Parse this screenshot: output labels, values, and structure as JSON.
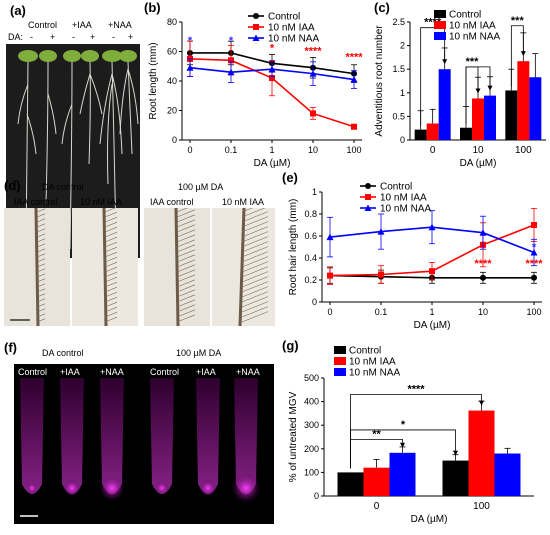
{
  "panels": {
    "a": {
      "label": "(a)",
      "groups": [
        "Control",
        "+IAA",
        "+NAA"
      ],
      "da_label": "DA:",
      "signs": [
        "-",
        "+",
        "-",
        "+",
        "-",
        "+"
      ]
    },
    "d": {
      "label": "(d)",
      "groups": [
        "DA control",
        "100 µM DA"
      ],
      "sub": [
        "IAA control",
        "10 nM IAA",
        "IAA control",
        "10 nM IAA"
      ]
    },
    "f": {
      "label": "(f)",
      "groups": [
        "DA control",
        "100 µM DA"
      ],
      "sub": [
        "Control",
        "+IAA",
        "+NAA",
        "Control",
        "+IAA",
        "+NAA"
      ]
    }
  },
  "colors": {
    "control": "#000000",
    "iaa": "#ff0000",
    "naa": "#0000ff",
    "sig": "#ff0000",
    "sig_blue": "#3333ff"
  },
  "chart_data": [
    {
      "id": "b",
      "label": "(b)",
      "type": "line",
      "x": [
        "0",
        "0.1",
        "1",
        "10",
        "100"
      ],
      "xlabel": "DA (µM)",
      "ylabel": "Root length (mm)",
      "ylim": [
        0,
        80
      ],
      "yticks": [
        "0",
        "20",
        "40",
        "60",
        "80"
      ],
      "legend": [
        "Control",
        "10 nM IAA",
        "10 nM NAA"
      ],
      "series": [
        {
          "name": "Control",
          "values": [
            59,
            59,
            52,
            49,
            45
          ],
          "err": [
            8,
            8,
            6,
            7,
            6
          ]
        },
        {
          "name": "10 nM IAA",
          "values": [
            55,
            54,
            42,
            18,
            9
          ],
          "err": [
            12,
            10,
            12,
            4,
            1
          ]
        },
        {
          "name": "10 nM NAA",
          "values": [
            49,
            46,
            48,
            45,
            41
          ],
          "err": [
            6,
            7,
            5,
            8,
            6
          ]
        }
      ],
      "annotations": [
        {
          "x": "0",
          "y": 65,
          "text": "*",
          "color": "blue"
        },
        {
          "x": "0.1",
          "y": 65,
          "text": "*",
          "color": "blue"
        },
        {
          "x": "1",
          "y": 60,
          "text": "*",
          "color": "red"
        },
        {
          "x": "10",
          "y": 58,
          "text": "****",
          "color": "red"
        },
        {
          "x": "100",
          "y": 54,
          "text": "****",
          "color": "red"
        }
      ]
    },
    {
      "id": "c",
      "label": "(c)",
      "type": "bar",
      "categories": [
        "0",
        "10",
        "100"
      ],
      "xlabel": "DA (µM)",
      "ylabel": "Adventitious root number",
      "ylim": [
        0,
        2.5
      ],
      "yticks": [
        "0",
        "0.5",
        "1",
        "1.5",
        "2",
        "2.5"
      ],
      "legend": [
        "Control",
        "10 nM IAA",
        "10 nM NAA"
      ],
      "series": [
        {
          "name": "Control",
          "values": [
            0.22,
            0.26,
            1.05
          ],
          "err": [
            0.4,
            0.45,
            0.45
          ]
        },
        {
          "name": "10 nM IAA",
          "values": [
            0.35,
            0.88,
            1.67
          ],
          "err": [
            0.3,
            0.45,
            0.6
          ]
        },
        {
          "name": "10 nM NAA",
          "values": [
            1.5,
            0.94,
            1.33
          ],
          "err": [
            0.45,
            0.4,
            0.5
          ]
        }
      ],
      "brackets": [
        {
          "from": [
            0,
            0
          ],
          "to": [
            0,
            2
          ],
          "y": 2.38,
          "text": "****"
        },
        {
          "from": [
            1,
            0
          ],
          "to": [
            1,
            1
          ],
          "y": 1.55,
          "text": "***"
        },
        {
          "from": [
            1,
            0
          ],
          "to": [
            1,
            2
          ],
          "y": 1.55,
          "text": ""
        },
        {
          "from": [
            2,
            0
          ],
          "to": [
            2,
            1
          ],
          "y": 2.42,
          "text": "***"
        }
      ]
    },
    {
      "id": "e",
      "label": "(e)",
      "type": "line",
      "x": [
        "0",
        "0.1",
        "1",
        "10",
        "100"
      ],
      "xlabel": "DA (µM)",
      "ylabel": "Root hair length (mm)",
      "ylim": [
        0,
        1.0
      ],
      "yticks": [
        "0",
        "0.2",
        "0.4",
        "0.6",
        "0.8",
        "1"
      ],
      "legend": [
        "Control",
        "10 nM IAA",
        "10 nM NAA"
      ],
      "series": [
        {
          "name": "Control",
          "values": [
            0.24,
            0.23,
            0.22,
            0.22,
            0.22
          ],
          "err": [
            0.07,
            0.06,
            0.05,
            0.05,
            0.05
          ]
        },
        {
          "name": "10 nM IAA",
          "values": [
            0.24,
            0.25,
            0.28,
            0.52,
            0.7
          ],
          "err": [
            0.08,
            0.08,
            0.08,
            0.2,
            0.15
          ]
        },
        {
          "name": "10 nM NAA",
          "values": [
            0.59,
            0.64,
            0.68,
            0.63,
            0.45
          ],
          "err": [
            0.18,
            0.16,
            0.15,
            0.15,
            0.12
          ]
        }
      ],
      "annotations": [
        {
          "x": "10",
          "y": 0.32,
          "text": "****",
          "color": "red"
        },
        {
          "x": "100",
          "y": 0.32,
          "text": "****",
          "color": "red"
        },
        {
          "x": "100",
          "y": 0.47,
          "text": "*",
          "color": "blue"
        }
      ]
    },
    {
      "id": "g",
      "label": "(g)",
      "type": "bar",
      "categories": [
        "0",
        "100"
      ],
      "xlabel": "DA (µM)",
      "ylabel": "% of untreated MGV",
      "ylim": [
        0,
        500
      ],
      "yticks": [
        "0",
        "100",
        "200",
        "300",
        "400",
        "500"
      ],
      "legend": [
        "Control",
        "10 nM IAA",
        "10 nM NAA"
      ],
      "series": [
        {
          "name": "Control",
          "values": [
            100,
            150
          ],
          "err": [
            0,
            25
          ]
        },
        {
          "name": "10 nM IAA",
          "values": [
            120,
            362
          ],
          "err": [
            35,
            40
          ]
        },
        {
          "name": "10 nM NAA",
          "values": [
            183,
            180
          ],
          "err": [
            25,
            22
          ]
        }
      ],
      "brackets": [
        {
          "from": [
            0,
            0
          ],
          "to": [
            0,
            2
          ],
          "y": 240,
          "text": "**"
        },
        {
          "from": [
            0,
            0
          ],
          "to": [
            1,
            0
          ],
          "y": 280,
          "text": "*"
        },
        {
          "from": [
            0,
            0
          ],
          "to": [
            1,
            1
          ],
          "y": 430,
          "text": "****"
        }
      ]
    }
  ]
}
